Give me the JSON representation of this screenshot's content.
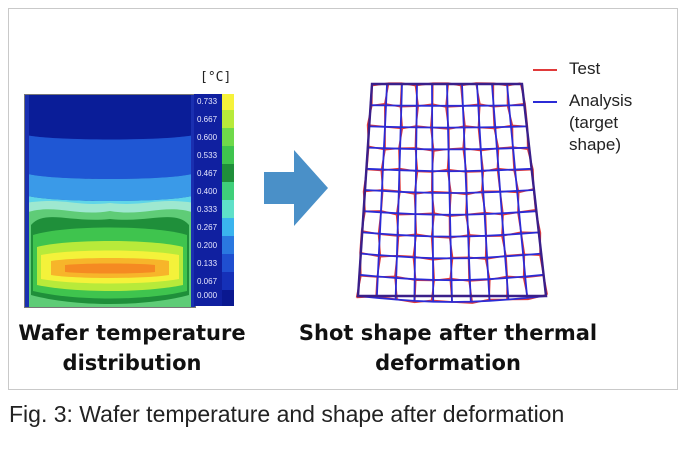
{
  "colorbar": {
    "unit": "[°C]",
    "ticks": [
      "0.733",
      "0.667",
      "0.600",
      "0.533",
      "0.467",
      "0.400",
      "0.333",
      "0.267",
      "0.200",
      "0.133",
      "0.067",
      "0.000"
    ]
  },
  "legend": {
    "test_label": "Test",
    "test_color": "#e03a3a",
    "analysis_label_lines": [
      "Analysis",
      "(target",
      "shape)"
    ],
    "analysis_color": "#2b2bd6"
  },
  "captions": {
    "left_line1": "Wafer temperature",
    "left_line2": "distribution",
    "right_line1": "Shot shape after thermal",
    "right_line2": "deformation"
  },
  "figure_caption": "Fig. 3: Wafer temperature and shape after deformation",
  "colors": {
    "arrow": "#4a90c8"
  }
}
